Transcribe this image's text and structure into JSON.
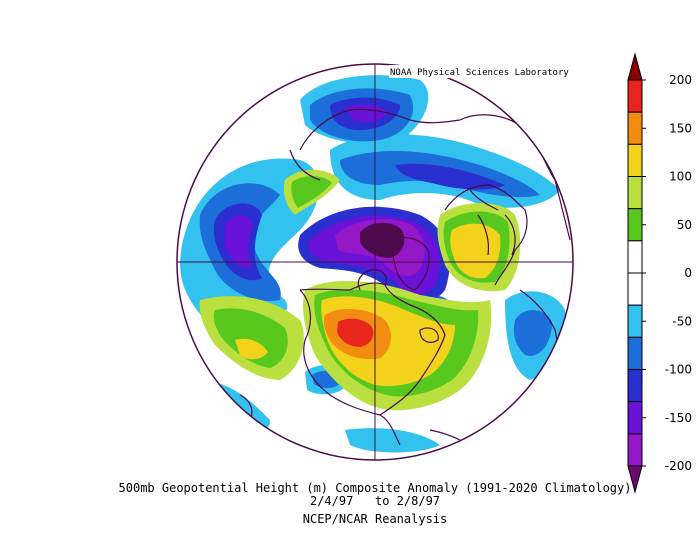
{
  "source_label": "NOAA Physical Sciences Laboratory",
  "title_line1": "500mb Geopotential Height (m) Composite Anomaly (1991-2020 Climatology)",
  "title_line2": "2/4/97   to 2/8/97",
  "title_line3": "NCEP/NCAR Reanalysis",
  "colorbar": {
    "ticks": [
      "200",
      "150",
      "100",
      "50",
      "0",
      "-50",
      "-100",
      "-150",
      "-200"
    ],
    "colors": [
      "#8b0000",
      "#e8261b",
      "#f38d12",
      "#f2d21a",
      "#b9e03e",
      "#58c81e",
      "#ffffff",
      "#ffffff",
      "#33c2f0",
      "#1c6fd8",
      "#2a2fd0",
      "#6a12d8",
      "#9417c8",
      "#6b0a6e"
    ],
    "colors_note": "ordered top (200) to bottom (-200); triangles at both ends"
  },
  "map": {
    "projection": "north polar stereographic",
    "field": "500mb geopotential height anomaly",
    "colors": {
      "outline": "#4a0a4a",
      "strong_positive": "#e8261b",
      "positive": "#f38d12",
      "weak_positive": "#f2d21a",
      "light_positive": "#b9e03e",
      "green": "#58c81e",
      "light_negative": "#33c2f0",
      "negative": "#1c6fd8",
      "strong_negative": "#2a2fd0",
      "violet": "#6a12d8",
      "purple": "#9417c8",
      "deep_purple": "#4d0a4d"
    }
  }
}
